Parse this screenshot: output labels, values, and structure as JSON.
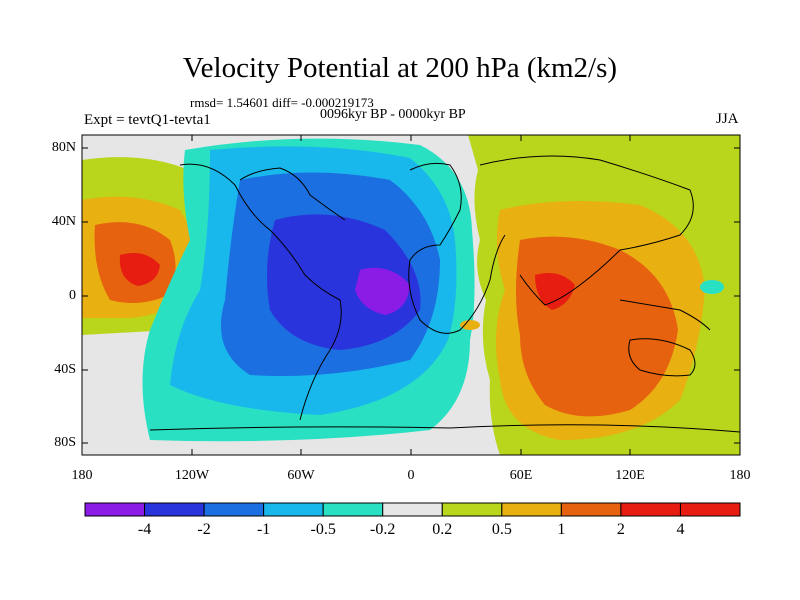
{
  "header": {
    "title": "Velocity Potential at 200 hPa (km2/s)",
    "stats": "rmsd= 1.54601 diff= -0.000219173",
    "period": "0096kyr BP - 0000kyr BP",
    "experiment": "Expt = tevtQ1-tevta1",
    "season": "JJA"
  },
  "axes": {
    "lat_labels": [
      "80N",
      "40N",
      "0",
      "40S",
      "80S"
    ],
    "lon_labels": [
      "180",
      "120W",
      "60W",
      "0",
      "60E",
      "120E",
      "180"
    ]
  },
  "colorbar": {
    "labels": [
      "-4",
      "-2",
      "-1",
      "-0.5",
      "-0.2",
      "0.2",
      "0.5",
      "1",
      "2",
      "4"
    ],
    "colors": [
      "#8a1ce6",
      "#2a34dd",
      "#1b6fe0",
      "#19b8ec",
      "#2ae0c3",
      "#e6e6e6",
      "#b9d61c",
      "#e8b011",
      "#e6620f",
      "#e81d12"
    ]
  }
}
